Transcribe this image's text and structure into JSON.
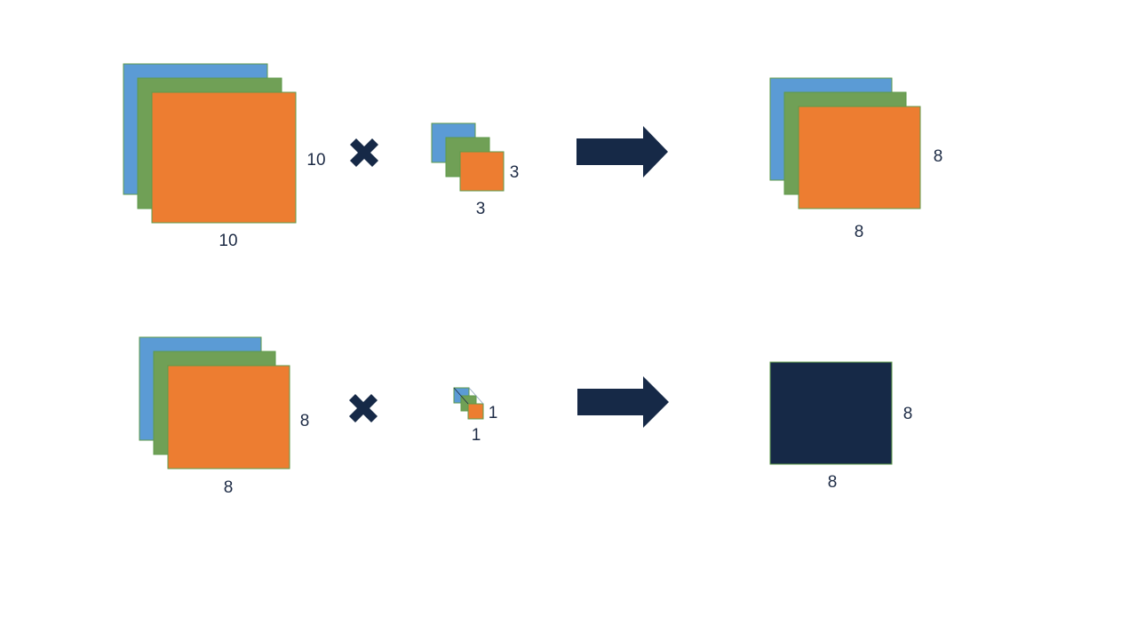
{
  "colors": {
    "blue": "#5b9bd5",
    "green": "#70a056",
    "orange": "#ed7d31",
    "navy": "#162947",
    "text": "#1d2b45",
    "background": "#ffffff"
  },
  "row1": {
    "input": {
      "height_label": "10",
      "width_label": "10"
    },
    "operator_icon": "multiply-icon",
    "kernel": {
      "height_label": "3",
      "width_label": "3"
    },
    "arrow_icon": "right-arrow-icon",
    "output": {
      "height_label": "8",
      "width_label": "8"
    }
  },
  "row2": {
    "input": {
      "height_label": "8",
      "width_label": "8"
    },
    "operator_icon": "multiply-icon",
    "kernel": {
      "height_label": "1",
      "width_label": "1"
    },
    "arrow_icon": "right-arrow-icon",
    "output": {
      "height_label": "8",
      "width_label": "8"
    }
  }
}
